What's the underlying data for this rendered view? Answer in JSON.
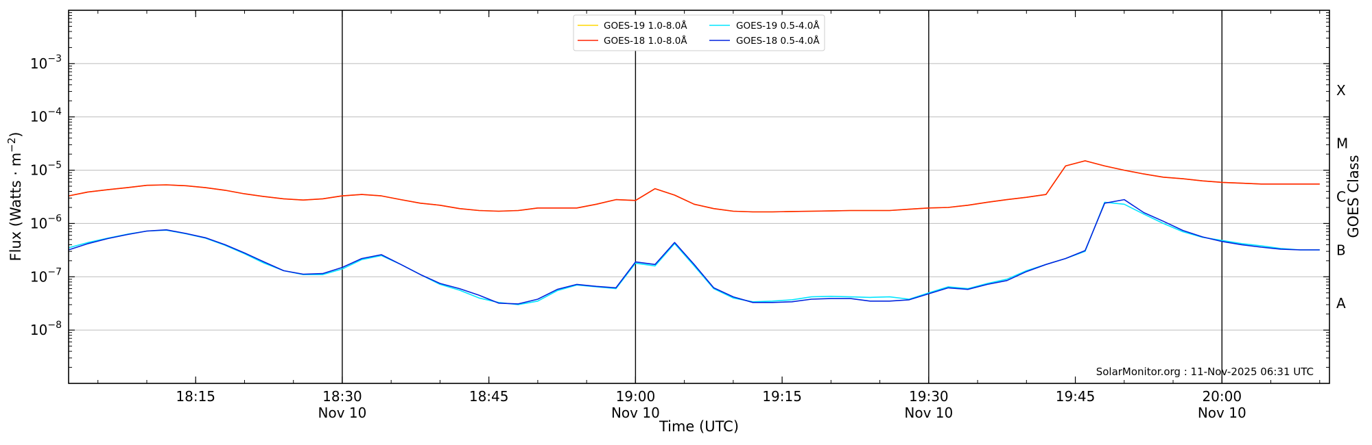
{
  "chart_data": {
    "type": "line",
    "xlabel": "Time (UTC)",
    "ylabel_main": "Flux (Watts · m",
    "ylabel_sup": "−2",
    "ylabel_close": ")",
    "right_label": "GOES Class",
    "credit": "SolarMonitor.org : 11-Nov-2025 06:31 UTC",
    "yscale": "log",
    "x_range_min": [
      0,
      129
    ],
    "x_range_note": "",
    "ylim_exp": [
      -9,
      -2
    ],
    "grid": "horizontal",
    "legend_position": "top-center",
    "x_start": "18:02",
    "x_end": "20:11",
    "time_ticks": [
      {
        "min": 13,
        "label": "18:15",
        "date": ""
      },
      {
        "min": 28,
        "label": "18:30",
        "date": "Nov 10"
      },
      {
        "min": 43,
        "label": "18:45",
        "date": ""
      },
      {
        "min": 58,
        "label": "19:00",
        "date": "Nov 10"
      },
      {
        "min": 73,
        "label": "19:15",
        "date": ""
      },
      {
        "min": 88,
        "label": "19:30",
        "date": "Nov 10"
      },
      {
        "min": 103,
        "label": "19:45",
        "date": ""
      },
      {
        "min": 118,
        "label": "20:00",
        "date": "Nov 10"
      }
    ],
    "vlines_min": [
      28,
      58,
      88,
      118
    ],
    "y_ticks": [
      {
        "exp": -3,
        "base": "10",
        "sup": "−3"
      },
      {
        "exp": -4,
        "base": "10",
        "sup": "−4"
      },
      {
        "exp": -5,
        "base": "10",
        "sup": "−5"
      },
      {
        "exp": -6,
        "base": "10",
        "sup": "−6"
      },
      {
        "exp": -7,
        "base": "10",
        "sup": "−7"
      },
      {
        "exp": -8,
        "base": "10",
        "sup": "−8"
      }
    ],
    "classes": [
      {
        "label": "X",
        "exp": -3.5
      },
      {
        "label": "M",
        "exp": -4.5
      },
      {
        "label": "C",
        "exp": -5.5
      },
      {
        "label": "B",
        "exp": -6.5
      },
      {
        "label": "A",
        "exp": -7.5
      }
    ],
    "series": [
      {
        "name": "GOES-19 1.0-8.0Å",
        "color": "#ffd700",
        "t": [
          0,
          2,
          4,
          6,
          8,
          10,
          12,
          14,
          16,
          18,
          20,
          22,
          24,
          26,
          28,
          30,
          32,
          34,
          36,
          38,
          40,
          42,
          44,
          46,
          48,
          50,
          52,
          54,
          56,
          58,
          60,
          62,
          64,
          66,
          68,
          70,
          72,
          74,
          76,
          78,
          80,
          82,
          84,
          86,
          88,
          90,
          92,
          94,
          96,
          98,
          100,
          102,
          104,
          106,
          108,
          110,
          112,
          114,
          116,
          118,
          120,
          122,
          124,
          126,
          128
        ],
        "v": [
          3.3e-06,
          3.9e-06,
          4.3e-06,
          4.7e-06,
          5.2e-06,
          5.3e-06,
          5.1e-06,
          4.7e-06,
          4.2e-06,
          3.6e-06,
          3.2e-06,
          2.9e-06,
          2.75e-06,
          2.9e-06,
          3.3e-06,
          3.5e-06,
          3.3e-06,
          2.8e-06,
          2.4e-06,
          2.2e-06,
          1.9e-06,
          1.75e-06,
          1.7e-06,
          1.75e-06,
          1.95e-06,
          1.95e-06,
          1.95e-06,
          2.3e-06,
          2.8e-06,
          2.7e-06,
          4.5e-06,
          3.4e-06,
          2.3e-06,
          1.9e-06,
          1.7e-06,
          1.65e-06,
          1.65e-06,
          1.68e-06,
          1.7e-06,
          1.72e-06,
          1.75e-06,
          1.75e-06,
          1.75e-06,
          1.85e-06,
          1.95e-06,
          2e-06,
          2.2e-06,
          2.5e-06,
          2.8e-06,
          3.1e-06,
          3.5e-06,
          1.2e-05,
          1.5e-05,
          1.2e-05,
          1e-05,
          8.5e-06,
          7.4e-06,
          6.9e-06,
          6.3e-06,
          5.9e-06,
          5.7e-06,
          5.5e-06,
          5.5e-06,
          5.5e-06,
          5.5e-06
        ]
      },
      {
        "name": "GOES-18 1.0-8.0Å",
        "color": "#ff2200",
        "t": [
          0,
          2,
          4,
          6,
          8,
          10,
          12,
          14,
          16,
          18,
          20,
          22,
          24,
          26,
          28,
          30,
          32,
          34,
          36,
          38,
          40,
          42,
          44,
          46,
          48,
          50,
          52,
          54,
          56,
          58,
          60,
          62,
          64,
          66,
          68,
          70,
          72,
          74,
          76,
          78,
          80,
          82,
          84,
          86,
          88,
          90,
          92,
          94,
          96,
          98,
          100,
          102,
          104,
          106,
          108,
          110,
          112,
          114,
          116,
          118,
          120,
          122,
          124,
          126,
          128
        ],
        "v": [
          3.3e-06,
          3.9e-06,
          4.3e-06,
          4.7e-06,
          5.2e-06,
          5.3e-06,
          5.1e-06,
          4.7e-06,
          4.2e-06,
          3.6e-06,
          3.2e-06,
          2.9e-06,
          2.75e-06,
          2.9e-06,
          3.3e-06,
          3.5e-06,
          3.3e-06,
          2.8e-06,
          2.4e-06,
          2.2e-06,
          1.9e-06,
          1.75e-06,
          1.7e-06,
          1.75e-06,
          1.95e-06,
          1.95e-06,
          1.95e-06,
          2.3e-06,
          2.8e-06,
          2.7e-06,
          4.5e-06,
          3.4e-06,
          2.3e-06,
          1.9e-06,
          1.7e-06,
          1.65e-06,
          1.65e-06,
          1.68e-06,
          1.7e-06,
          1.72e-06,
          1.75e-06,
          1.75e-06,
          1.75e-06,
          1.85e-06,
          1.95e-06,
          2e-06,
          2.2e-06,
          2.5e-06,
          2.8e-06,
          3.1e-06,
          3.5e-06,
          1.2e-05,
          1.5e-05,
          1.2e-05,
          1e-05,
          8.5e-06,
          7.4e-06,
          6.9e-06,
          6.3e-06,
          5.9e-06,
          5.7e-06,
          5.5e-06,
          5.5e-06,
          5.5e-06,
          5.5e-06
        ]
      },
      {
        "name": "GOES-19 0.5-4.0Å",
        "color": "#00e5ff",
        "t": [
          0,
          2,
          4,
          6,
          8,
          10,
          12,
          14,
          16,
          18,
          20,
          22,
          24,
          26,
          28,
          30,
          32,
          34,
          36,
          38,
          40,
          42,
          44,
          46,
          48,
          50,
          52,
          54,
          56,
          58,
          60,
          62,
          64,
          66,
          68,
          70,
          72,
          74,
          76,
          78,
          80,
          82,
          84,
          86,
          88,
          90,
          92,
          94,
          96,
          98,
          100,
          102,
          104,
          106,
          108,
          110,
          112,
          114,
          116,
          118,
          120,
          122,
          124,
          126,
          128
        ],
        "v": [
          3.5e-07,
          4.4e-07,
          5.3e-07,
          6.3e-07,
          7.2e-07,
          7.5e-07,
          6.4e-07,
          5.3e-07,
          3.9e-07,
          2.7e-07,
          1.8e-07,
          1.3e-07,
          1.1e-07,
          1.1e-07,
          1.4e-07,
          2.1e-07,
          2.5e-07,
          1.7e-07,
          1.1e-07,
          7.2e-08,
          5.6e-08,
          4e-08,
          3.3e-08,
          3e-08,
          3.5e-08,
          5.5e-08,
          7e-08,
          6.5e-08,
          6e-08,
          1.8e-07,
          1.6e-07,
          4.2e-07,
          1.6e-07,
          6e-08,
          4e-08,
          3.4e-08,
          3.5e-08,
          3.7e-08,
          4.2e-08,
          4.3e-08,
          4.2e-08,
          4.1e-08,
          4.2e-08,
          3.8e-08,
          5e-08,
          6.5e-08,
          6e-08,
          7.5e-08,
          9e-08,
          1.3e-07,
          1.7e-07,
          2.2e-07,
          3e-07,
          2.5e-06,
          2.3e-06,
          1.5e-06,
          1e-06,
          7e-07,
          5.5e-07,
          4.8e-07,
          4.2e-07,
          3.8e-07,
          3.4e-07,
          3.2e-07,
          3.2e-07
        ]
      },
      {
        "name": "GOES-18 0.5-4.0Å",
        "color": "#0022dd",
        "t": [
          0,
          2,
          4,
          6,
          8,
          10,
          12,
          14,
          16,
          18,
          20,
          22,
          24,
          26,
          28,
          30,
          32,
          34,
          36,
          38,
          40,
          42,
          44,
          46,
          48,
          50,
          52,
          54,
          56,
          58,
          60,
          62,
          64,
          66,
          68,
          70,
          72,
          74,
          76,
          78,
          80,
          82,
          84,
          86,
          88,
          90,
          92,
          94,
          96,
          98,
          100,
          102,
          104,
          106,
          108,
          110,
          112,
          114,
          116,
          118,
          120,
          122,
          124,
          126,
          128
        ],
        "v": [
          3.2e-07,
          4.2e-07,
          5.2e-07,
          6.2e-07,
          7.2e-07,
          7.6e-07,
          6.5e-07,
          5.4e-07,
          4e-07,
          2.8e-07,
          1.9e-07,
          1.3e-07,
          1.12e-07,
          1.15e-07,
          1.5e-07,
          2.2e-07,
          2.6e-07,
          1.7e-07,
          1.1e-07,
          7.5e-08,
          6e-08,
          4.5e-08,
          3.2e-08,
          3.1e-08,
          3.8e-08,
          5.8e-08,
          7.2e-08,
          6.6e-08,
          6.2e-08,
          1.9e-07,
          1.7e-07,
          4.4e-07,
          1.7e-07,
          6.2e-08,
          4.2e-08,
          3.3e-08,
          3.3e-08,
          3.4e-08,
          3.8e-08,
          3.9e-08,
          3.9e-08,
          3.5e-08,
          3.5e-08,
          3.7e-08,
          4.8e-08,
          6.2e-08,
          5.8e-08,
          7.2e-08,
          8.5e-08,
          1.25e-07,
          1.7e-07,
          2.2e-07,
          3.1e-07,
          2.4e-06,
          2.8e-06,
          1.6e-06,
          1.1e-06,
          7.4e-07,
          5.6e-07,
          4.6e-07,
          4e-07,
          3.6e-07,
          3.3e-07,
          3.2e-07,
          3.2e-07
        ]
      }
    ]
  }
}
